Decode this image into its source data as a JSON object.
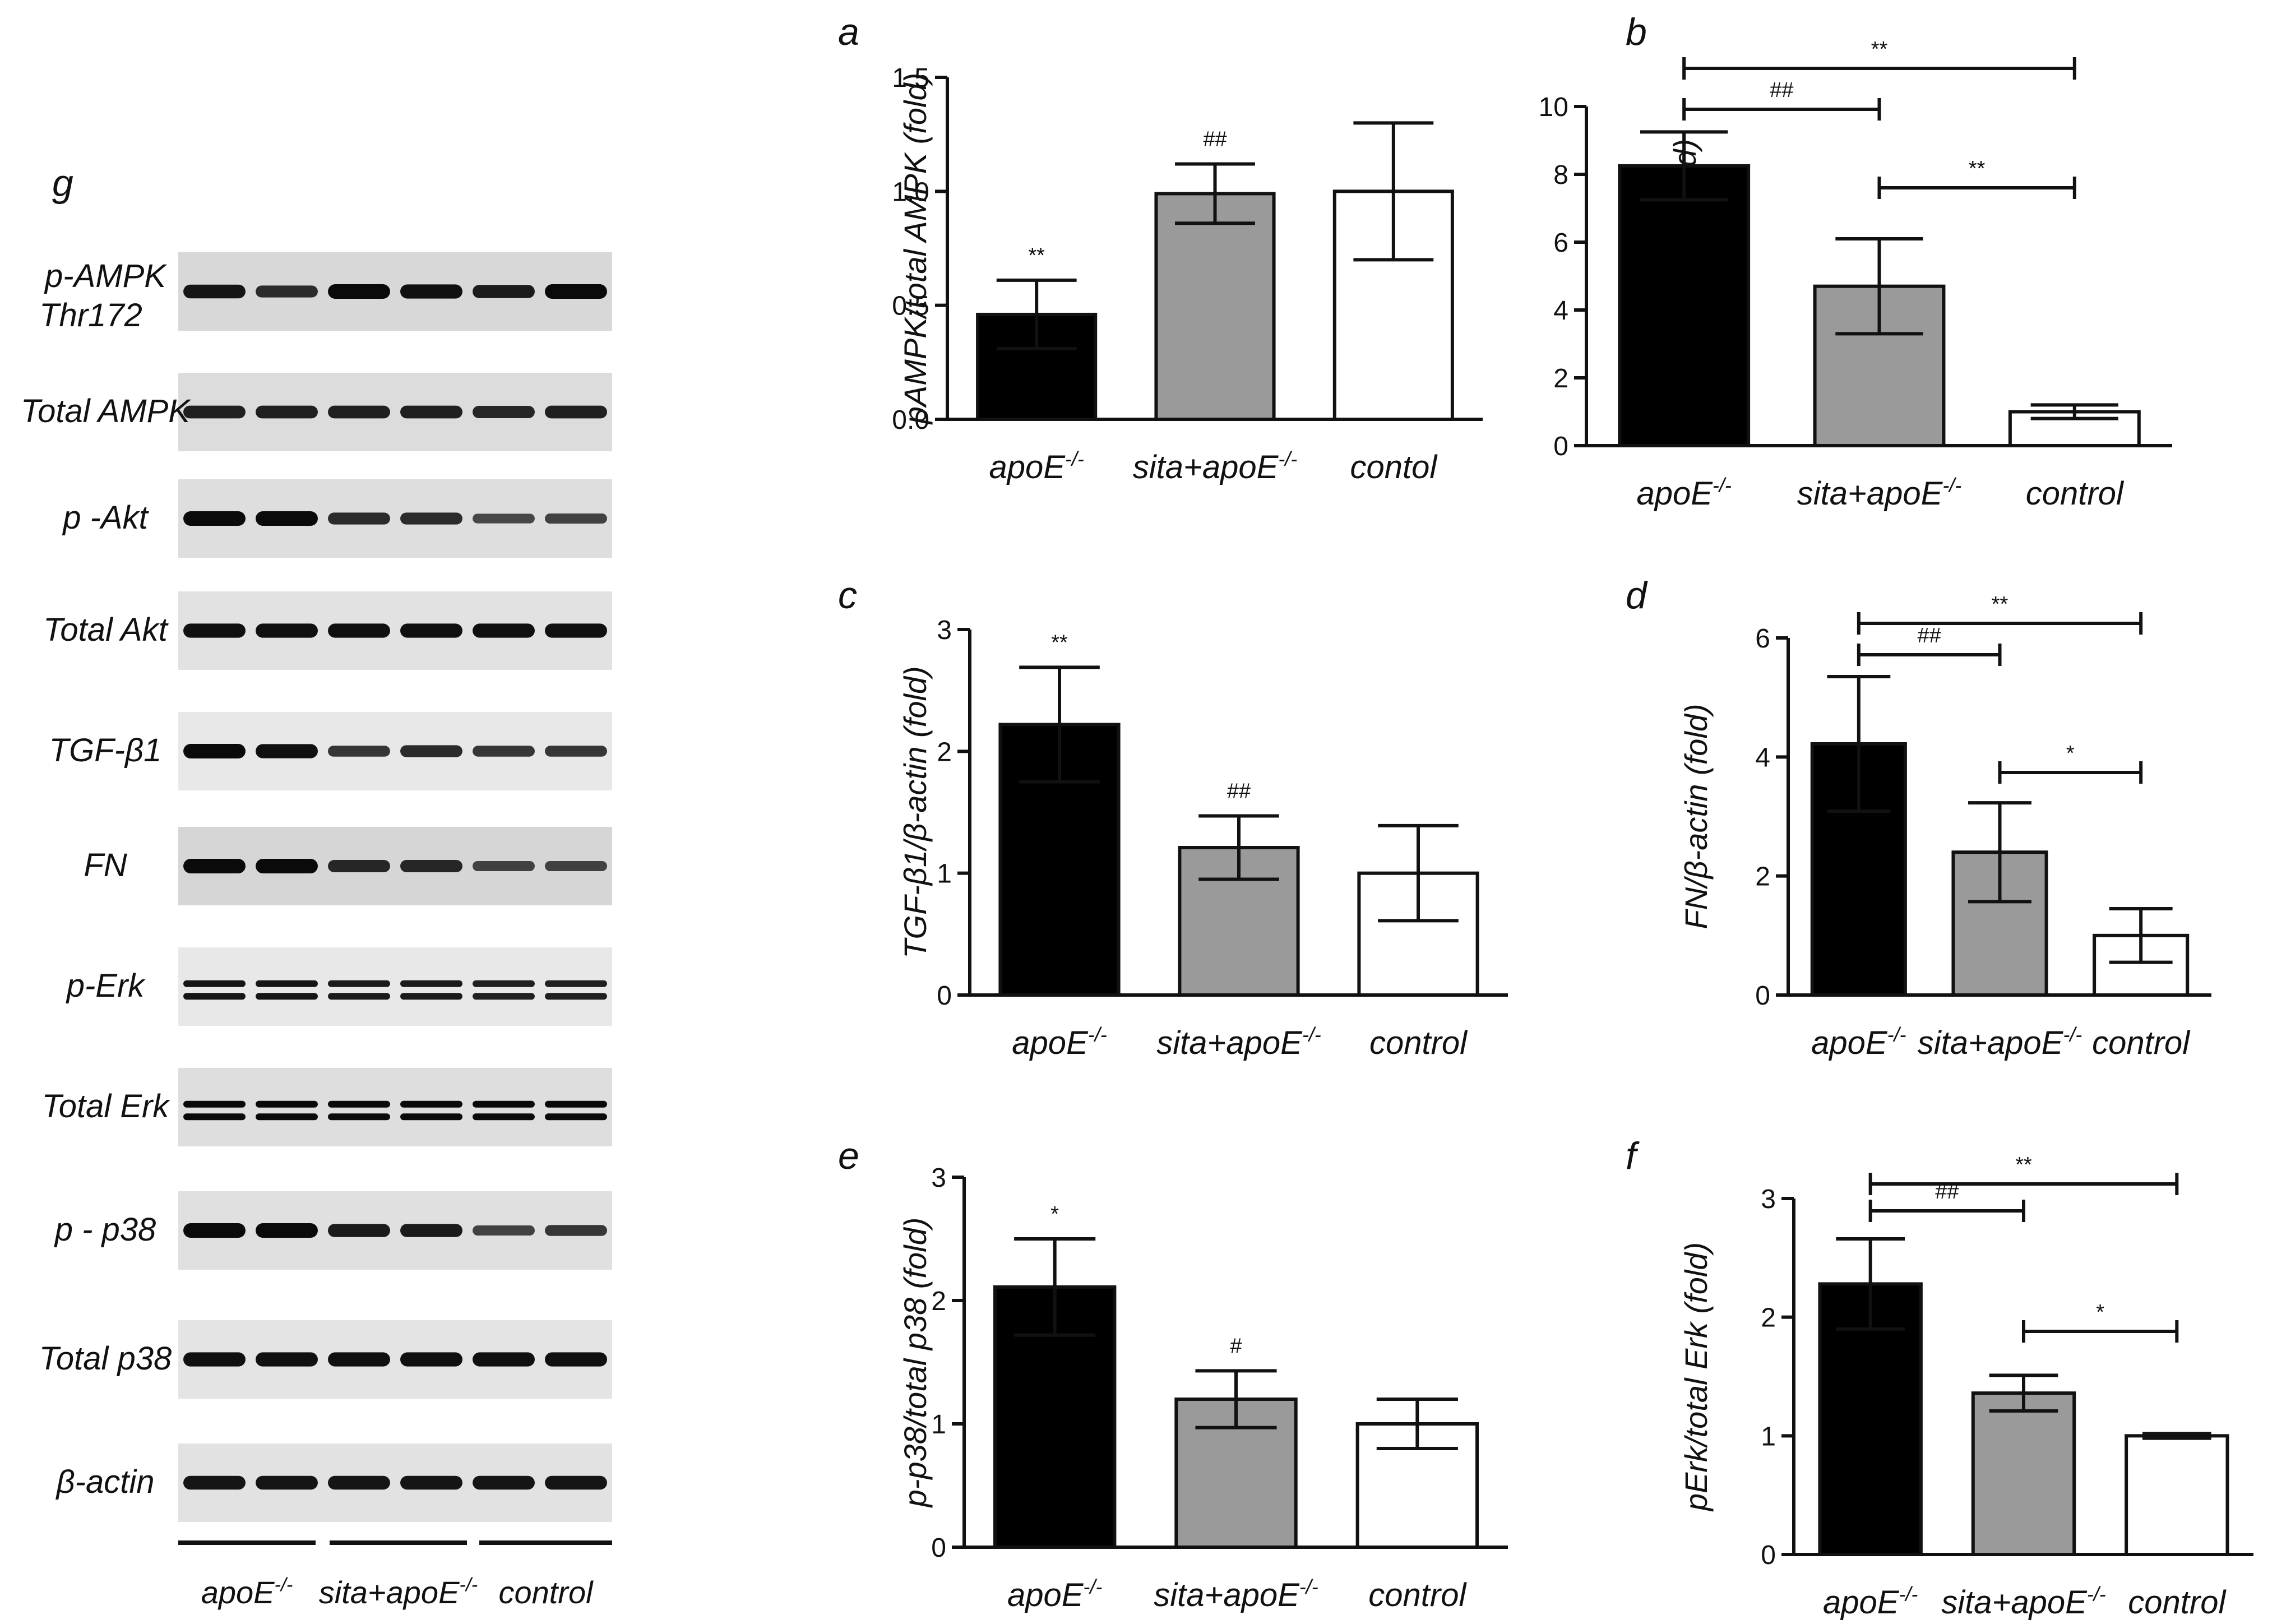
{
  "blot": {
    "panel_label": "g",
    "rows": [
      {
        "label": "p-AMPK",
        "label2": "Thr172",
        "bands": [
          0.9,
          0.7,
          1.0,
          0.95,
          0.85,
          1.0
        ],
        "double": false,
        "bg": "#d8d8d8"
      },
      {
        "label": "Total AMPK",
        "label2": "",
        "bands": [
          0.8,
          0.8,
          0.8,
          0.8,
          0.75,
          0.8
        ],
        "double": false,
        "bg": "#dcdcdc"
      },
      {
        "label": "p -Akt",
        "label2": "",
        "bands": [
          1.0,
          1.0,
          0.7,
          0.7,
          0.45,
          0.5
        ],
        "double": false,
        "bg": "#dedede"
      },
      {
        "label": "Total Akt",
        "label2": "",
        "bands": [
          0.95,
          0.95,
          0.95,
          0.95,
          0.95,
          0.95
        ],
        "double": false,
        "bg": "#e2e2e2"
      },
      {
        "label": "TGF-β1",
        "label2": "",
        "bands": [
          1.0,
          0.95,
          0.6,
          0.7,
          0.6,
          0.6
        ],
        "double": false,
        "bg": "#e8e8e8"
      },
      {
        "label": "FN",
        "label2": "",
        "bands": [
          1.0,
          1.0,
          0.75,
          0.75,
          0.5,
          0.5
        ],
        "double": false,
        "bg": "#d6d6d6"
      },
      {
        "label": "p-Erk",
        "label2": "",
        "bands": [
          0.9,
          0.9,
          0.85,
          0.85,
          0.8,
          0.8
        ],
        "double": true,
        "bg": "#e8e8e8"
      },
      {
        "label": "Total Erk",
        "label2": "",
        "bands": [
          1.0,
          1.0,
          1.0,
          1.0,
          1.0,
          1.0
        ],
        "double": true,
        "bg": "#dedede"
      },
      {
        "label": "p - p38",
        "label2": "",
        "bands": [
          1.0,
          1.0,
          0.85,
          0.85,
          0.5,
          0.6
        ],
        "double": false,
        "bg": "#e0e0e0"
      },
      {
        "label": "Total p38",
        "label2": "",
        "bands": [
          0.95,
          0.95,
          0.95,
          0.95,
          0.95,
          0.95
        ],
        "double": false,
        "bg": "#e4e4e4"
      },
      {
        "label": "β-actin",
        "label2": "",
        "bands": [
          0.9,
          0.9,
          0.9,
          0.9,
          0.9,
          0.9
        ],
        "double": false,
        "bg": "#e2e2e2"
      }
    ],
    "groups": [
      {
        "base": "apoE",
        "sup": "-/-"
      },
      {
        "base": "sita+apoE",
        "sup": "-/-"
      },
      {
        "base": "control",
        "sup": ""
      }
    ]
  },
  "chart_data": [
    {
      "id": "a",
      "type": "bar",
      "panel_label": "a",
      "ylabel": "pAMPK/total AMPK (fold)",
      "ylim": [
        0,
        1.5
      ],
      "yticks": [
        "0.0",
        "0.5",
        "1.0",
        "1.5"
      ],
      "categories": [
        {
          "base": "apoE",
          "sup": "-/-"
        },
        {
          "base": "sita+apoE",
          "sup": "-/-"
        },
        {
          "base": "contol",
          "sup": ""
        }
      ],
      "values": [
        0.46,
        0.99,
        1.0
      ],
      "errors": [
        0.15,
        0.13,
        0.3
      ],
      "bar_colors": [
        "#000000",
        "#9a9a9a",
        "#ffffff"
      ],
      "bar_marks": [
        "**",
        "##",
        ""
      ],
      "brackets": []
    },
    {
      "id": "b",
      "type": "bar",
      "panel_label": "b",
      "ylabel": "p-Akt/total Akt (fold)",
      "ylim": [
        0,
        10
      ],
      "yticks": [
        "0",
        "2",
        "4",
        "6",
        "8",
        "10"
      ],
      "categories": [
        {
          "base": "apoE",
          "sup": "-/-"
        },
        {
          "base": "sita+apoE",
          "sup": "-/-"
        },
        {
          "base": "control",
          "sup": ""
        }
      ],
      "values": [
        8.25,
        4.7,
        1.0
      ],
      "errors": [
        1.0,
        1.4,
        0.2
      ],
      "bar_colors": [
        "#000000",
        "#9a9a9a",
        "#ffffff"
      ],
      "bar_marks": [
        "",
        "",
        ""
      ],
      "brackets": [
        {
          "from": 0,
          "to": 2,
          "label": "**"
        },
        {
          "from": 0,
          "to": 1,
          "label": "##"
        },
        {
          "from": 1,
          "to": 2,
          "label": "**"
        }
      ]
    },
    {
      "id": "c",
      "type": "bar",
      "panel_label": "c",
      "ylabel": "TGF-β1/β-actin (fold)",
      "ylim": [
        0,
        3
      ],
      "yticks": [
        "0",
        "1",
        "2",
        "3"
      ],
      "categories": [
        {
          "base": "apoE",
          "sup": "-/-"
        },
        {
          "base": "sita+apoE",
          "sup": "-/-"
        },
        {
          "base": "control",
          "sup": ""
        }
      ],
      "values": [
        2.22,
        1.21,
        1.0
      ],
      "errors": [
        0.47,
        0.26,
        0.39
      ],
      "bar_colors": [
        "#000000",
        "#9a9a9a",
        "#ffffff"
      ],
      "bar_marks": [
        "**",
        "##",
        ""
      ],
      "brackets": []
    },
    {
      "id": "d",
      "type": "bar",
      "panel_label": "d",
      "ylabel": "FN/β-actin (fold)",
      "ylim": [
        0,
        6
      ],
      "yticks": [
        "0",
        "2",
        "4",
        "6"
      ],
      "categories": [
        {
          "base": "apoE",
          "sup": "-/-"
        },
        {
          "base": "sita+apoE",
          "sup": "-/-"
        },
        {
          "base": "control",
          "sup": ""
        }
      ],
      "values": [
        4.22,
        2.4,
        1.0
      ],
      "errors": [
        1.13,
        0.83,
        0.45
      ],
      "bar_colors": [
        "#000000",
        "#9a9a9a",
        "#ffffff"
      ],
      "bar_marks": [
        "",
        "",
        ""
      ],
      "brackets": [
        {
          "from": 0,
          "to": 2,
          "label": "**"
        },
        {
          "from": 0,
          "to": 1,
          "label": "##"
        },
        {
          "from": 1,
          "to": 2,
          "label": "*"
        }
      ]
    },
    {
      "id": "e",
      "type": "bar",
      "panel_label": "e",
      "ylabel": "p-p38/total p38 (fold)",
      "ylim": [
        0,
        3
      ],
      "yticks": [
        "0",
        "1",
        "2",
        "3"
      ],
      "categories": [
        {
          "base": "apoE",
          "sup": "-/-"
        },
        {
          "base": "sita+apoE",
          "sup": "-/-"
        },
        {
          "base": "control",
          "sup": ""
        }
      ],
      "values": [
        2.11,
        1.2,
        1.0
      ],
      "errors": [
        0.39,
        0.23,
        0.2
      ],
      "bar_colors": [
        "#000000",
        "#9a9a9a",
        "#ffffff"
      ],
      "bar_marks": [
        "*",
        "#",
        ""
      ],
      "brackets": []
    },
    {
      "id": "f",
      "type": "bar",
      "panel_label": "f",
      "ylabel": "pErk/total Erk (fold)",
      "ylim": [
        0,
        3
      ],
      "yticks": [
        "0",
        "1",
        "2",
        "3"
      ],
      "categories": [
        {
          "base": "apoE",
          "sup": "-/-"
        },
        {
          "base": "sita+apoE",
          "sup": "-/-"
        },
        {
          "base": "control",
          "sup": ""
        }
      ],
      "values": [
        2.28,
        1.36,
        1.0
      ],
      "errors": [
        0.38,
        0.15,
        0.02
      ],
      "bar_colors": [
        "#000000",
        "#9a9a9a",
        "#ffffff"
      ],
      "bar_marks": [
        "",
        "",
        ""
      ],
      "brackets": [
        {
          "from": 0,
          "to": 2,
          "label": "**"
        },
        {
          "from": 0,
          "to": 1,
          "label": "##"
        },
        {
          "from": 1,
          "to": 2,
          "label": "*"
        }
      ]
    }
  ]
}
